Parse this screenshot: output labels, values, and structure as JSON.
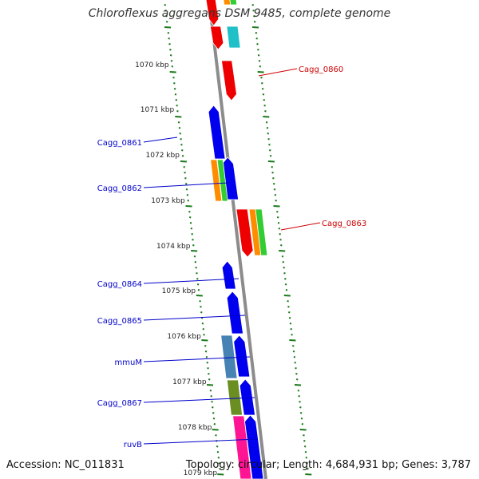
{
  "title": "Chloroflexus aggregans DSM 9485, complete genome",
  "footer": {
    "accession": "Accession: NC_011831",
    "summary": "Topology: circular; Length: 4,684,931 bp; Genes: 3,787"
  },
  "colors": {
    "backbone": "#8c8c8c",
    "tick": "#1a7a1a",
    "forward_label": "#0000cc",
    "reverse_label": "#cc0000",
    "blue_gene": "#0000ee",
    "red_gene": "#ee0000",
    "orange_gene": "#ff8c00",
    "green_gene": "#33cc33",
    "cyan_gene": "#20c0c8",
    "steel_gene": "#4682b4",
    "olive_gene": "#6b8e23",
    "pink_gene": "#ff1493"
  },
  "scale_labels": [
    "1070 kbp",
    "1071 kbp",
    "1072 kbp",
    "1073 kbp",
    "1074 kbp",
    "1075 kbp",
    "1076 kbp",
    "1077 kbp",
    "1078 kbp",
    "1079 kbp"
  ],
  "gene_labels_left": [
    "Cagg_0861",
    "Cagg_0862",
    "Cagg_0864",
    "Cagg_0865",
    "mmuM",
    "Cagg_0867",
    "ruvB"
  ],
  "gene_labels_right": [
    "Cagg_0860",
    "Cagg_0863"
  ]
}
